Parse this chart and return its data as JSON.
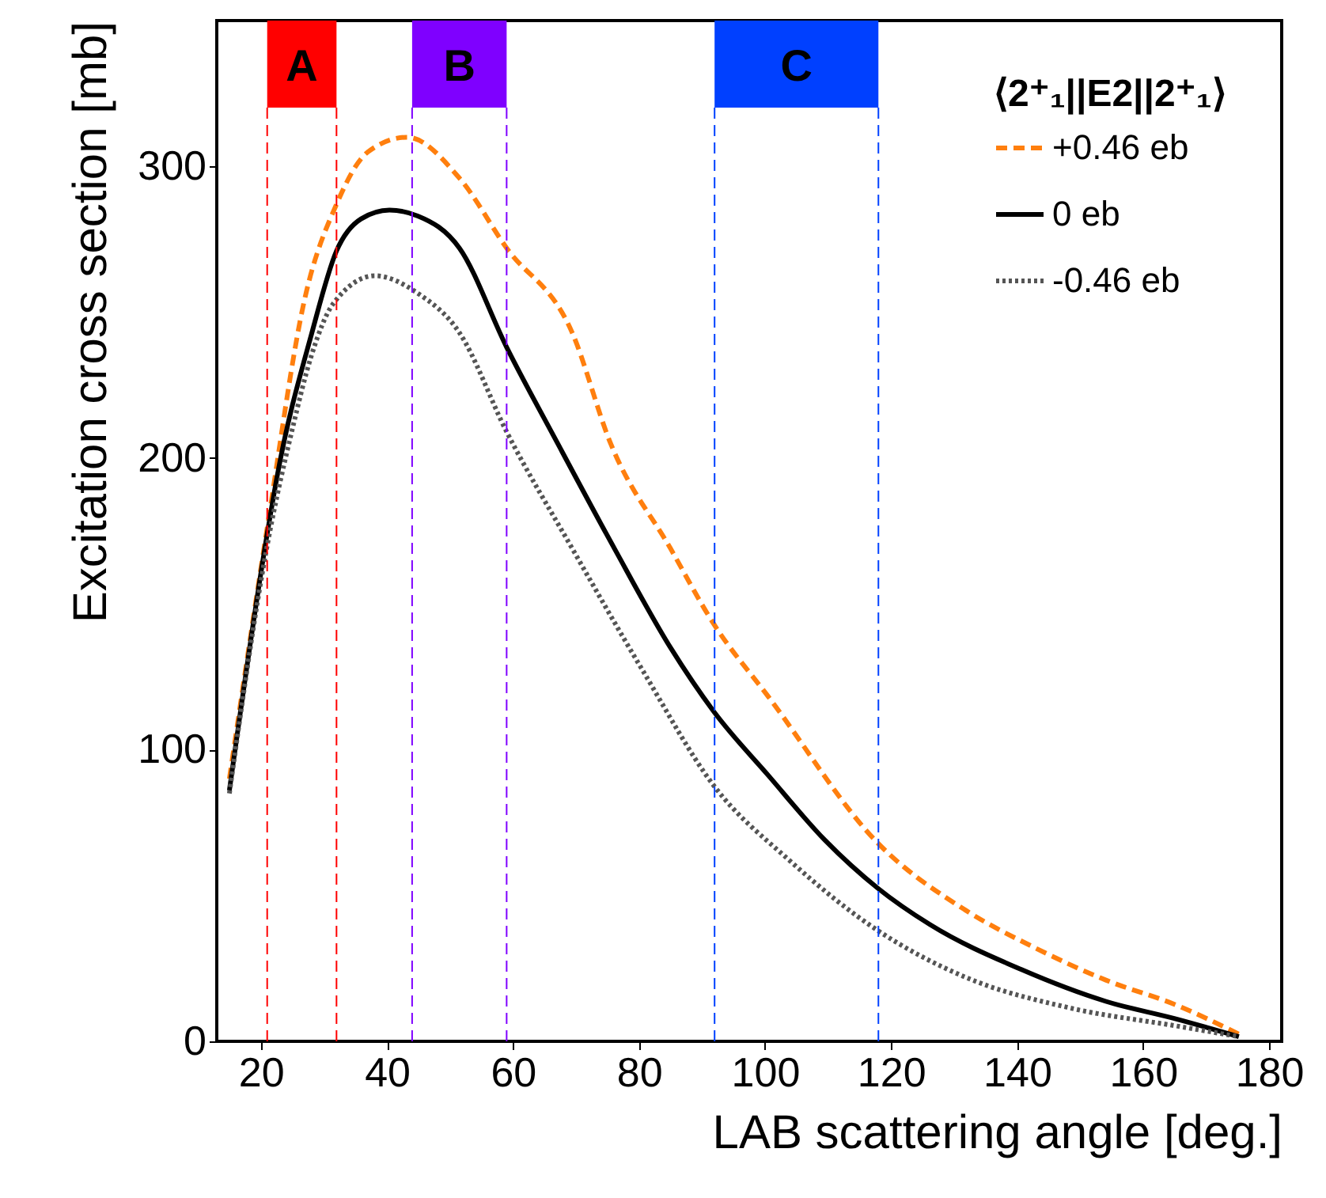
{
  "chart_data": {
    "type": "line",
    "xlabel": "LAB scattering angle [deg.]",
    "ylabel": "Excitation cross section [mb]",
    "legend_title": "⟨2⁺₁||E2||2⁺₁⟩",
    "xlim": [
      13,
      182
    ],
    "ylim": [
      0,
      350
    ],
    "xticks": [
      20,
      40,
      60,
      80,
      100,
      120,
      140,
      160,
      180
    ],
    "yticks": [
      0,
      100,
      200,
      300
    ],
    "grid": false,
    "legend": "top right",
    "series": [
      {
        "name": "+0.46 eb",
        "color": "#ff7f0e",
        "line_style": "dashed",
        "x": [
          15,
          21,
          27,
          32,
          37,
          43.2,
          51.5,
          59,
          69.4,
          75.5,
          85,
          91.9,
          100.6,
          117.9,
          131.8,
          142.9,
          154.1,
          165.2,
          175.2
        ],
        "values": [
          90,
          176,
          255,
          287,
          305,
          310,
          296,
          272,
          243,
          205,
          169,
          143,
          118,
          68,
          45,
          32,
          21,
          12.5,
          2.5
        ]
      },
      {
        "name": "0 eb",
        "color": "#000000",
        "line_style": "solid",
        "x": [
          15,
          21,
          22.6,
          28.1,
          32,
          35.9,
          40.4,
          44.9,
          51.5,
          59,
          67.1,
          76.1,
          85,
          91.9,
          100.6,
          109.5,
          117.9,
          126.2,
          140.7,
          154.1,
          165.2,
          175.2
        ],
        "values": [
          86,
          174,
          194,
          243,
          271,
          282,
          285,
          283,
          272,
          238,
          205,
          169,
          135,
          113,
          91,
          69,
          52.5,
          40,
          24.6,
          13.7,
          7.7,
          1.6
        ]
      },
      {
        "name": "-0.46 eb",
        "color": "#555555",
        "line_style": "dotted",
        "x": [
          15,
          21,
          25,
          28,
          31.5,
          38.1,
          44.9,
          51.5,
          59,
          69.4,
          80.5,
          91.9,
          103.9,
          117.9,
          131.8,
          148.5,
          165.2,
          175.2
        ],
        "values": [
          85,
          170,
          210,
          235,
          253,
          262.5,
          256.5,
          243,
          209,
          169,
          127.5,
          87.6,
          62,
          38,
          22,
          11.4,
          5.3,
          1.6
        ]
      }
    ],
    "bands": [
      {
        "axis": "x",
        "from": 21,
        "to": 32,
        "label": "A",
        "color": "#ff0000"
      },
      {
        "axis": "x",
        "from": 44,
        "to": 59,
        "label": "B",
        "color": "#7f00ff"
      },
      {
        "axis": "x",
        "from": 92,
        "to": 118,
        "label": "C",
        "color": "#0040ff"
      }
    ],
    "ref_lines": [
      {
        "axis": "x",
        "value": 21,
        "label": null,
        "color": "#ff0000",
        "line_style": "dashed"
      },
      {
        "axis": "x",
        "value": 32,
        "label": null,
        "color": "#ff0000",
        "line_style": "dashed"
      },
      {
        "axis": "x",
        "value": 44,
        "label": null,
        "color": "#7f00ff",
        "line_style": "dashed"
      },
      {
        "axis": "x",
        "value": 59,
        "label": null,
        "color": "#7f00ff",
        "line_style": "dashed"
      },
      {
        "axis": "x",
        "value": 92,
        "label": null,
        "color": "#0040ff",
        "line_style": "dashed"
      },
      {
        "axis": "x",
        "value": 118,
        "label": null,
        "color": "#0040ff",
        "line_style": "dashed"
      }
    ]
  }
}
